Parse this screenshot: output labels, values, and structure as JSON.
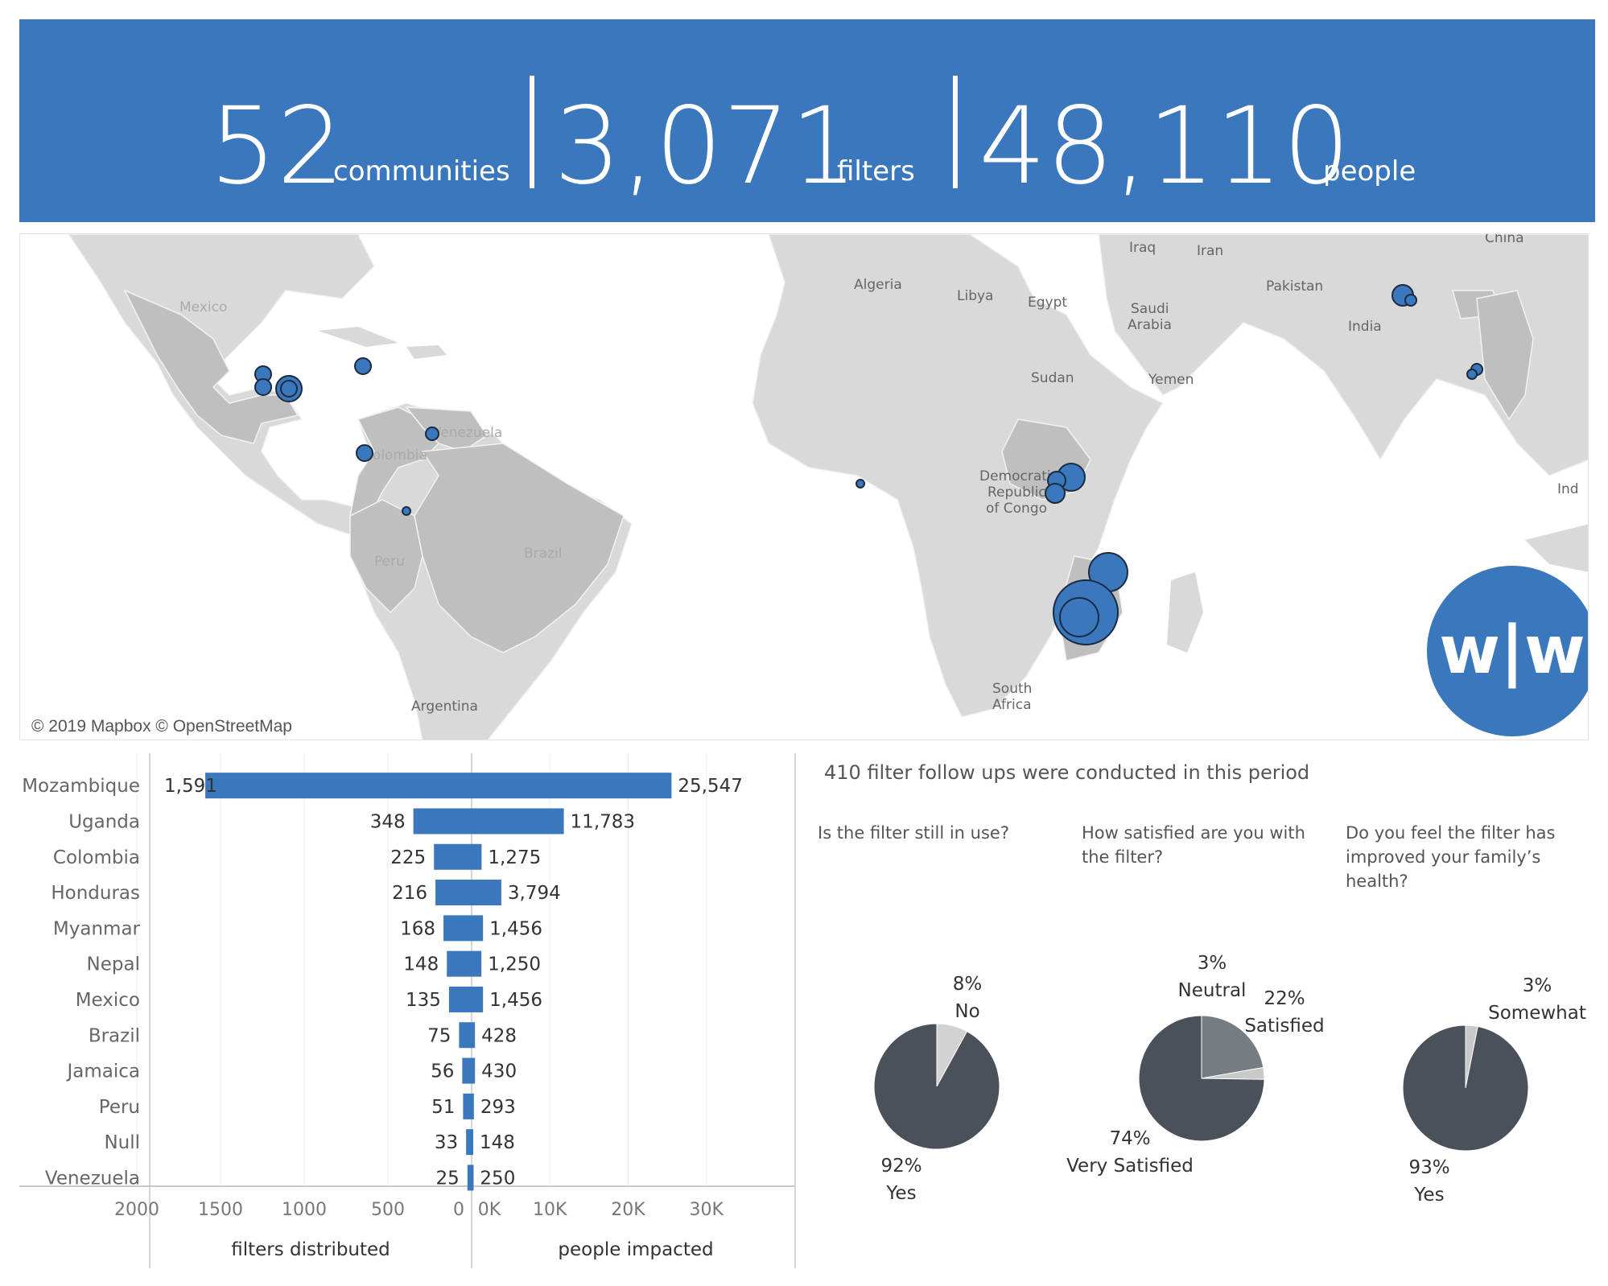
{
  "kpi": {
    "communities_value": "52",
    "communities_label": "communities",
    "filters_value": "3,071",
    "filters_label": "filters",
    "people_value": "48,110",
    "people_label": "people"
  },
  "map": {
    "credit": "© 2019 Mapbox © OpenStreetMap",
    "labels": [
      "Mexico",
      "Colombia",
      "Venezuela",
      "Peru",
      "Brazil",
      "Argentina",
      "Algeria",
      "Libya",
      "Egypt",
      "Sudan",
      "Iraq",
      "Iran",
      "Saudi",
      "Arabia",
      "Yemen",
      "Pakistan",
      "India",
      "China",
      "Ind",
      "Democratic",
      "Republic",
      "of Congo",
      "South",
      "Africa"
    ],
    "logo_text": "w|w",
    "colors": {
      "land": "#d9d9d9",
      "highlight": "#bfbfbf",
      "marker": "#3a77bc"
    }
  },
  "chart_data": [
    {
      "type": "bar",
      "title": "",
      "categories": [
        "Mozambique",
        "Uganda",
        "Colombia",
        "Honduras",
        "Myanmar",
        "Nepal",
        "Mexico",
        "Brazil",
        "Jamaica",
        "Peru",
        "Null",
        "Venezuela"
      ],
      "series": [
        {
          "name": "filters distributed",
          "values": [
            1591,
            348,
            225,
            216,
            168,
            148,
            135,
            75,
            56,
            51,
            33,
            25
          ],
          "labels": [
            "1,591",
            "348",
            "225",
            "216",
            "168",
            "148",
            "135",
            "75",
            "56",
            "51",
            "33",
            "25"
          ]
        },
        {
          "name": "people impacted",
          "values": [
            25547,
            11783,
            1275,
            3794,
            1456,
            1250,
            1456,
            428,
            430,
            293,
            148,
            250
          ],
          "labels": [
            "25,547",
            "11,783",
            "1,275",
            "3,794",
            "1,456",
            "1,250",
            "1,456",
            "428",
            "430",
            "293",
            "148",
            "250"
          ]
        }
      ],
      "axes": {
        "filters": {
          "xlabel": "filters distributed",
          "ticks": [
            "2000",
            "1500",
            "1000",
            "500",
            "0"
          ],
          "tick_values": [
            2000,
            1500,
            1000,
            500,
            0
          ],
          "xlim": [
            2000,
            0
          ]
        },
        "people": {
          "xlabel": "people impacted",
          "ticks": [
            "0K",
            "10K",
            "20K",
            "30K"
          ],
          "tick_values": [
            0,
            10000,
            20000,
            30000
          ],
          "xlim": [
            0,
            36000
          ]
        }
      },
      "grid": true,
      "color": "#3a77bc"
    },
    {
      "type": "pie",
      "title": "Is the filter still in use?",
      "slices": [
        {
          "label": "Yes",
          "value": 92,
          "display": "92%",
          "color": "#4a515b"
        },
        {
          "label": "No",
          "value": 8,
          "display": "8%",
          "color": "#d2d2d2"
        }
      ]
    },
    {
      "type": "pie",
      "title": "How satisfied are you with the filter?",
      "slices": [
        {
          "label": "Very Satisfied",
          "value": 74,
          "display": "74%",
          "color": "#4a515b"
        },
        {
          "label": "Satisfied",
          "value": 22,
          "display": "22%",
          "color": "#757d83"
        },
        {
          "label": "Neutral",
          "value": 3,
          "display": "3%",
          "color": "#c9c9c9"
        }
      ]
    },
    {
      "type": "pie",
      "title": "Do you feel the filter has improved your family’s health?",
      "slices": [
        {
          "label": "Yes",
          "value": 93,
          "display": "93%",
          "color": "#4a515b"
        },
        {
          "label": "Somewhat",
          "value": 3,
          "display": "3%",
          "color": "#c9c9c9"
        }
      ]
    }
  ],
  "survey": {
    "header": "410 filter follow ups were conducted in this period",
    "q1": "Is the filter still in use?",
    "q2": "How satisfied are you with the filter?",
    "q3": "Do you feel the filter has improved your family’s health?"
  }
}
